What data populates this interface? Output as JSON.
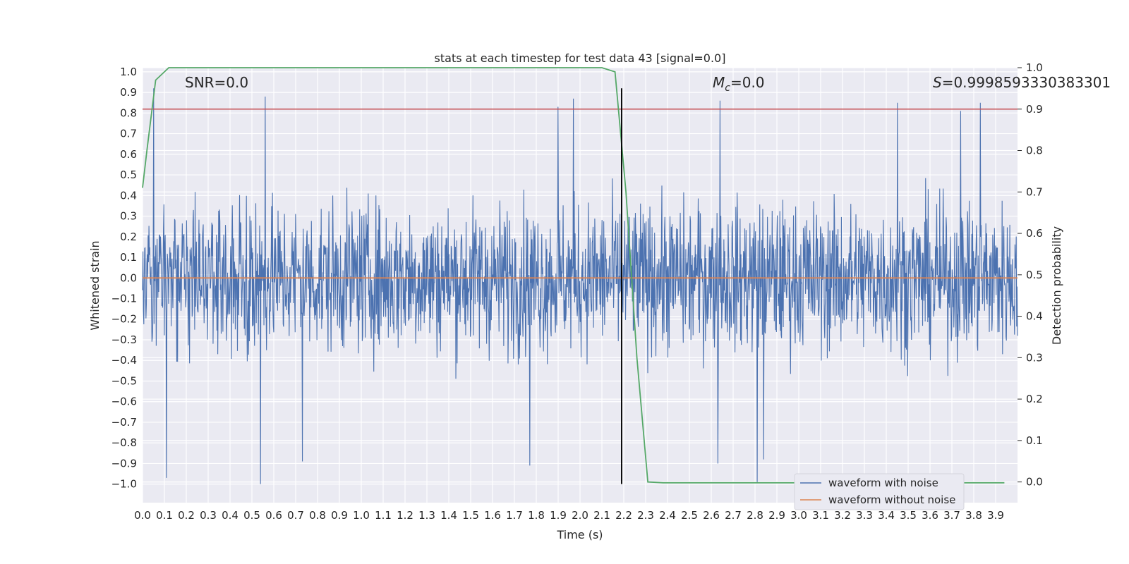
{
  "chart_data": {
    "type": "line",
    "title": "stats at each timestep for test data 43 [signal=0.0]",
    "xlabel": "Time (s)",
    "ylabel_left": "Whitened strain",
    "ylabel_right": "Detection probability",
    "xlim": [
      0.0,
      4.0
    ],
    "ylim_left": [
      -1.09,
      1.02
    ],
    "ylim_right": [
      -0.05,
      1.0
    ],
    "x_ticks": [
      "0.0",
      "0.1",
      "0.2",
      "0.3",
      "0.4",
      "0.5",
      "0.6",
      "0.7",
      "0.8",
      "0.9",
      "1.0",
      "1.1",
      "1.2",
      "1.3",
      "1.4",
      "1.5",
      "1.6",
      "1.7",
      "1.8",
      "1.9",
      "2.0",
      "2.1",
      "2.2",
      "2.3",
      "2.4",
      "2.5",
      "2.6",
      "2.7",
      "2.8",
      "2.9",
      "3.0",
      "3.1",
      "3.2",
      "3.3",
      "3.4",
      "3.5",
      "3.6",
      "3.7",
      "3.8",
      "3.9"
    ],
    "y_ticks_left": [
      "1.0",
      "0.9",
      "0.8",
      "0.7",
      "0.6",
      "0.5",
      "0.4",
      "0.3",
      "0.2",
      "0.1",
      "0.0",
      "−0.1",
      "−0.2",
      "−0.3",
      "−0.4",
      "−0.5",
      "−0.6",
      "−0.7",
      "−0.8",
      "−0.9",
      "−1.0"
    ],
    "y_ticks_right": [
      "1.0",
      "0.9",
      "0.8",
      "0.7",
      "0.6",
      "0.5",
      "0.4",
      "0.3",
      "0.2",
      "0.1",
      "0.0"
    ],
    "grid": true,
    "legend_placement": "lower-right",
    "annotations": {
      "snr": "SNR=0.0",
      "mc_symbol": "M",
      "mc_sub": "c",
      "mc_value": "=0.0",
      "s_symbol": "S",
      "s_value": "=0.9998593330383301"
    },
    "series": [
      {
        "name": "waveform with noise",
        "axis": "left",
        "color": "#4c72b0",
        "description": "dense noise trace",
        "samples": 2048,
        "amplitude": 0.18,
        "peaks": [
          [
            0.05,
            0.92
          ],
          [
            0.56,
            0.88
          ],
          [
            0.54,
            -1.0
          ],
          [
            0.11,
            -0.97
          ],
          [
            0.73,
            -0.89
          ],
          [
            1.9,
            0.83
          ],
          [
            1.97,
            0.87
          ],
          [
            2.81,
            -0.99
          ],
          [
            2.84,
            -0.88
          ],
          [
            2.63,
            -0.9
          ],
          [
            3.74,
            0.81
          ],
          [
            3.83,
            0.85
          ],
          [
            3.45,
            0.85
          ],
          [
            2.64,
            0.86
          ],
          [
            1.77,
            -0.91
          ]
        ]
      },
      {
        "name": "waveform without noise",
        "axis": "left",
        "color": "#dd8452",
        "x": [
          0.0,
          4.0
        ],
        "y": [
          0.0,
          0.0
        ]
      },
      {
        "name": "",
        "axis": "right",
        "color": "#55a868",
        "x": [
          0.0,
          0.02,
          0.06,
          0.12,
          2.1,
          2.16,
          2.21,
          2.26,
          2.31,
          2.38,
          3.94
        ],
        "y": [
          0.71,
          0.8,
          0.97,
          1.0,
          1.0,
          0.99,
          0.7,
          0.3,
          0.0,
          -0.002,
          -0.002
        ]
      }
    ],
    "threshold": {
      "axis": "right",
      "value": 0.9,
      "color": "#c44e52"
    },
    "vline": {
      "x": 2.19,
      "y": [
        -1.0,
        0.92
      ],
      "color": "#000000"
    }
  }
}
